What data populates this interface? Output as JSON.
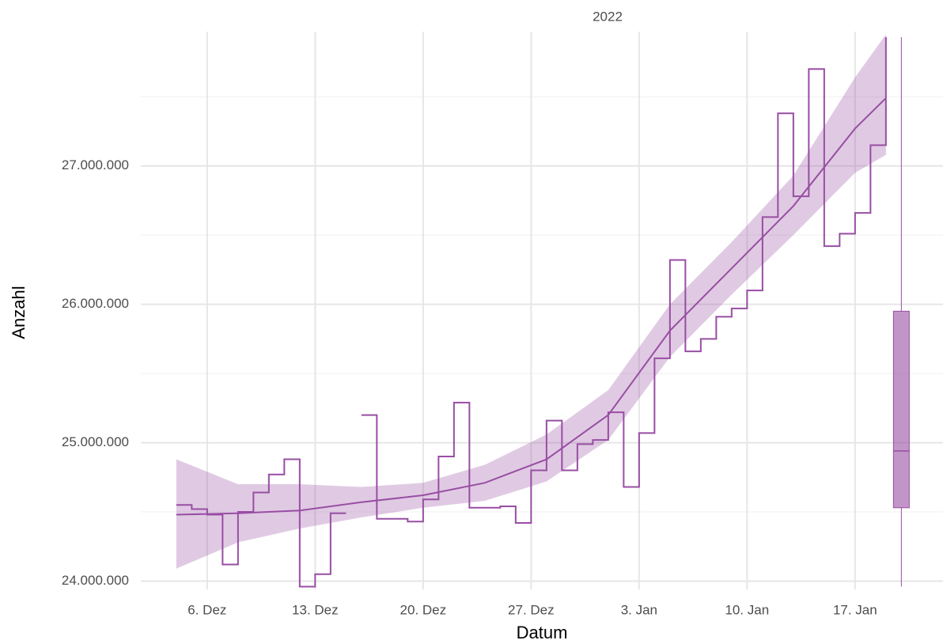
{
  "chart_data": {
    "type": "step",
    "facet_title": "2022",
    "x_label": "Datum",
    "y_label": "Anzahl",
    "color": "#984ea3",
    "xlim": [
      1.7,
      53.7
    ],
    "xticks": [
      {
        "value": 6,
        "label": "6. Dez"
      },
      {
        "value": 13,
        "label": "13. Dez"
      },
      {
        "value": 20,
        "label": "20. Dez"
      },
      {
        "value": 27,
        "label": "27. Dez"
      },
      {
        "value": 34,
        "label": "3. Jan"
      },
      {
        "value": 41,
        "label": "10. Jan"
      },
      {
        "value": 48,
        "label": "17. Jan"
      }
    ],
    "ylim": [
      23940000,
      27970000
    ],
    "yticks": [
      {
        "value": 24000000,
        "label": "24.000.000"
      },
      {
        "value": 25000000,
        "label": "25.000.000"
      },
      {
        "value": 26000000,
        "label": "26.000.000"
      },
      {
        "value": 27000000,
        "label": "27.000.000"
      }
    ],
    "yminor_ticks": [
      24500000,
      25500000,
      26500000,
      27500000
    ],
    "grid": true,
    "step": {
      "x": [
        4,
        5,
        6,
        7,
        8,
        9,
        10,
        11,
        12,
        13,
        14,
        15,
        16,
        17,
        18,
        19,
        20,
        21,
        22,
        23,
        24,
        25,
        26,
        27,
        28,
        29,
        30,
        31,
        32,
        33,
        34,
        35,
        36,
        37,
        38,
        39,
        40,
        41,
        42,
        43,
        44,
        45,
        46,
        47,
        48,
        49,
        50
      ],
      "values": [
        24550000,
        24520000,
        24480000,
        24120000,
        24500000,
        24640000,
        24770000,
        24880000,
        23960000,
        24050000,
        24490000,
        null,
        25200000,
        24450000,
        24450000,
        24430000,
        24590000,
        24900000,
        25290000,
        24530000,
        24530000,
        24540000,
        24420000,
        24800000,
        25160000,
        24800000,
        24990000,
        25020000,
        25220000,
        24680000,
        25070000,
        25610000,
        26320000,
        25660000,
        25750000,
        25910000,
        25970000,
        26100000,
        26630000,
        27380000,
        26780000,
        27700000,
        26420000,
        26510000,
        26660000,
        27150000,
        27930000
      ]
    },
    "smooth": {
      "x": [
        4,
        8,
        12,
        16,
        20,
        24,
        28,
        32,
        36,
        40,
        44,
        48,
        50
      ],
      "values": [
        24480000,
        24490000,
        24510000,
        24570000,
        24620000,
        24710000,
        24880000,
        25200000,
        25810000,
        26260000,
        26710000,
        27270000,
        27490000
      ],
      "lower": [
        24090000,
        24280000,
        24380000,
        24460000,
        24530000,
        24580000,
        24720000,
        25020000,
        25620000,
        26070000,
        26500000,
        26950000,
        27080000
      ],
      "upper": [
        24880000,
        24700000,
        24700000,
        24680000,
        24710000,
        24840000,
        25060000,
        25380000,
        26000000,
        26450000,
        26930000,
        27640000,
        27950000
      ]
    },
    "box": {
      "x": 51,
      "min": 23960000,
      "q1": 24530000,
      "median": 24940000,
      "q3": 25950000,
      "max": 27930000
    }
  }
}
